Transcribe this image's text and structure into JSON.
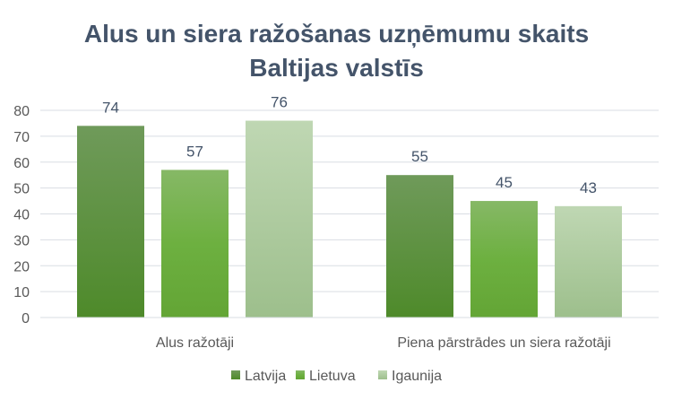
{
  "chart_data": {
    "type": "bar",
    "title": [
      "Alus un siera ražošanas uzņēmumu skaits",
      "Baltijas valstīs"
    ],
    "categories": [
      "Alus ražotāji",
      "Piena pārstrādes un siera ražotāji"
    ],
    "series": [
      {
        "name": "Latvija",
        "values": [
          74,
          55
        ],
        "color": "#5a8f35"
      },
      {
        "name": "Lietuva",
        "values": [
          57,
          45
        ],
        "color": "#70b244"
      },
      {
        "name": "Igaunija",
        "values": [
          76,
          43
        ],
        "color": "#aecb9e"
      }
    ],
    "ylim": [
      0,
      80
    ],
    "yticks": [
      0,
      10,
      20,
      30,
      40,
      50,
      60,
      70,
      80
    ],
    "grid": true,
    "legend": "bottom",
    "xlabel": "",
    "ylabel": ""
  }
}
